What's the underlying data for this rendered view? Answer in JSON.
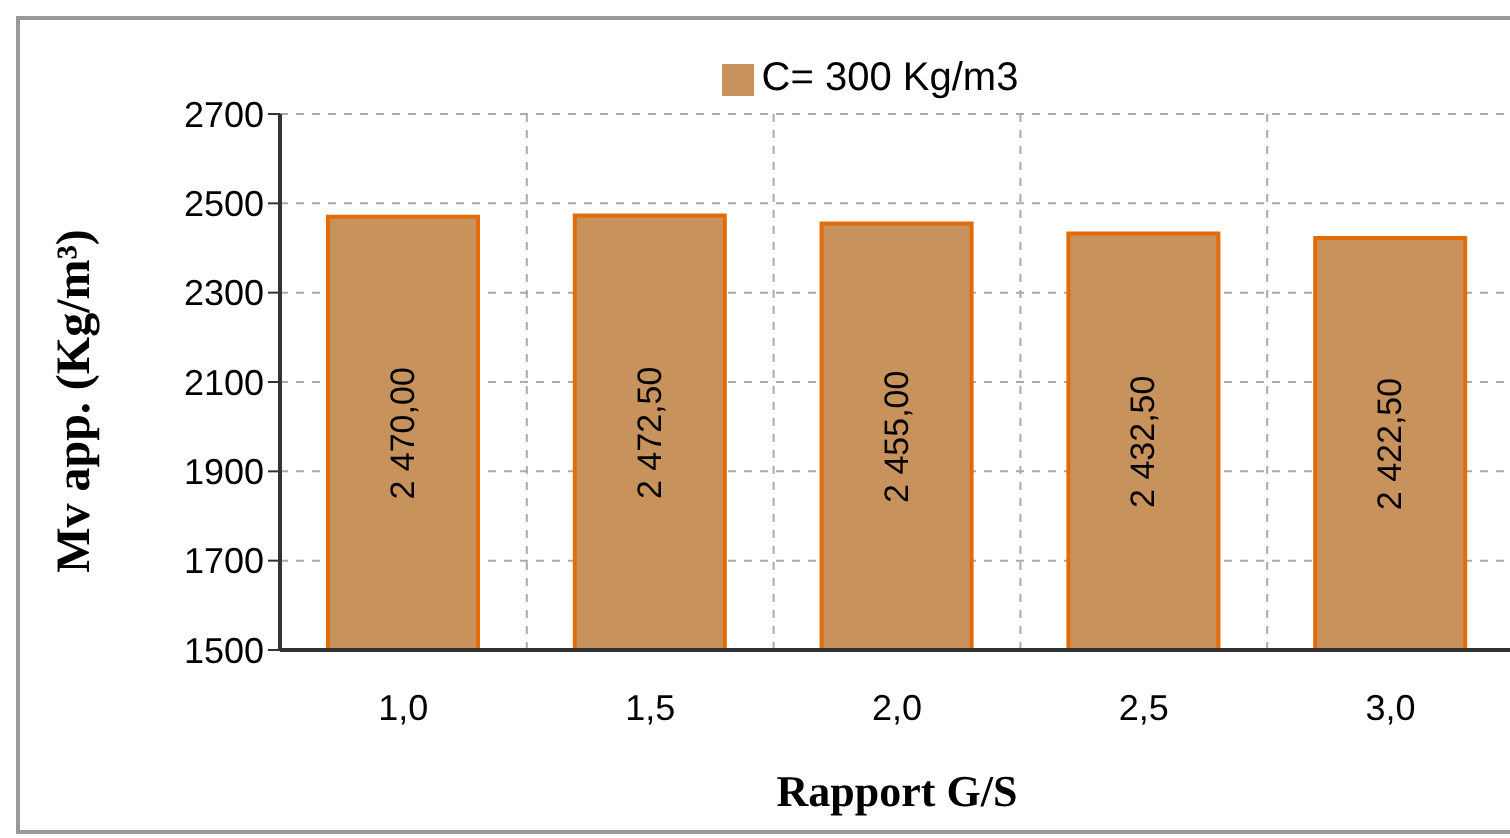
{
  "chart_data": {
    "type": "bar",
    "xlabel": "Rapport G/S",
    "ylabel": "Mv app. (Kg/m³)",
    "categories": [
      "1,0",
      "1,5",
      "2,0",
      "2,5",
      "3,0"
    ],
    "series": [
      {
        "name": "C= 300 Kg/m3",
        "color": "#c8925c",
        "values": [
          2470.0,
          2472.5,
          2455.0,
          2432.5,
          2422.5
        ],
        "value_labels": [
          "2 470,00",
          "2 472,50",
          "2 455,00",
          "2 432,50",
          "2 422,50"
        ]
      }
    ],
    "ylim": [
      1500,
      2700
    ],
    "yticks": [
      1500,
      1700,
      1900,
      2100,
      2300,
      2500,
      2700
    ],
    "grid": true,
    "legend": "top"
  }
}
